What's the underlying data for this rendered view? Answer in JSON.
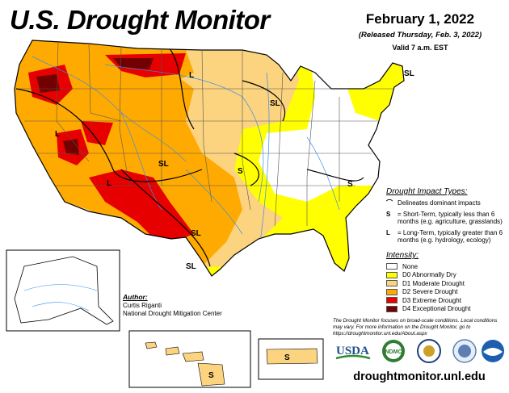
{
  "header": {
    "title": "U.S. Drought Monitor",
    "date": "February 1, 2022",
    "released": "(Released Thursday, Feb. 3, 2022)",
    "valid": "Valid 7 a.m. EST"
  },
  "map": {
    "impact_labels": [
      "SL",
      "L",
      "SL",
      "L",
      "SL",
      "S",
      "S",
      "L",
      "SL",
      "SL",
      "S",
      "S"
    ]
  },
  "impact_types": {
    "heading": "Drought Impact Types:",
    "items": [
      {
        "glyph": "⌒",
        "text": "Delineates dominant impacts"
      },
      {
        "glyph": "S",
        "text": "= Short-Term, typically less than 6 months (e.g. agriculture, grasslands)"
      },
      {
        "glyph": "L",
        "text": "= Long-Term, typically greater than 6 months (e.g. hydrology, ecology)"
      }
    ]
  },
  "intensity": {
    "heading": "Intensity:",
    "items": [
      {
        "label": "None",
        "color": "#ffffff"
      },
      {
        "label": "D0 Abnormally Dry",
        "color": "#ffff00"
      },
      {
        "label": "D1 Moderate Drought",
        "color": "#fcd37f"
      },
      {
        "label": "D2 Severe Drought",
        "color": "#ffaa00"
      },
      {
        "label": "D3 Extreme Drought",
        "color": "#e60000"
      },
      {
        "label": "D4 Exceptional Drought",
        "color": "#730000"
      }
    ]
  },
  "author": {
    "label": "Author:",
    "name": "Curtis Riganti",
    "org": "National Drought Mitigation Center"
  },
  "note": "The Drought Monitor focuses on broad-scale conditions. Local conditions may vary. For more information on the Drought Monitor, go to https://droughtmonitor.unl.edu/About.aspx",
  "logos": {
    "usda": "USDA",
    "ndmc": "NDMC"
  },
  "footer": {
    "url": "droughtmonitor.unl.edu"
  }
}
